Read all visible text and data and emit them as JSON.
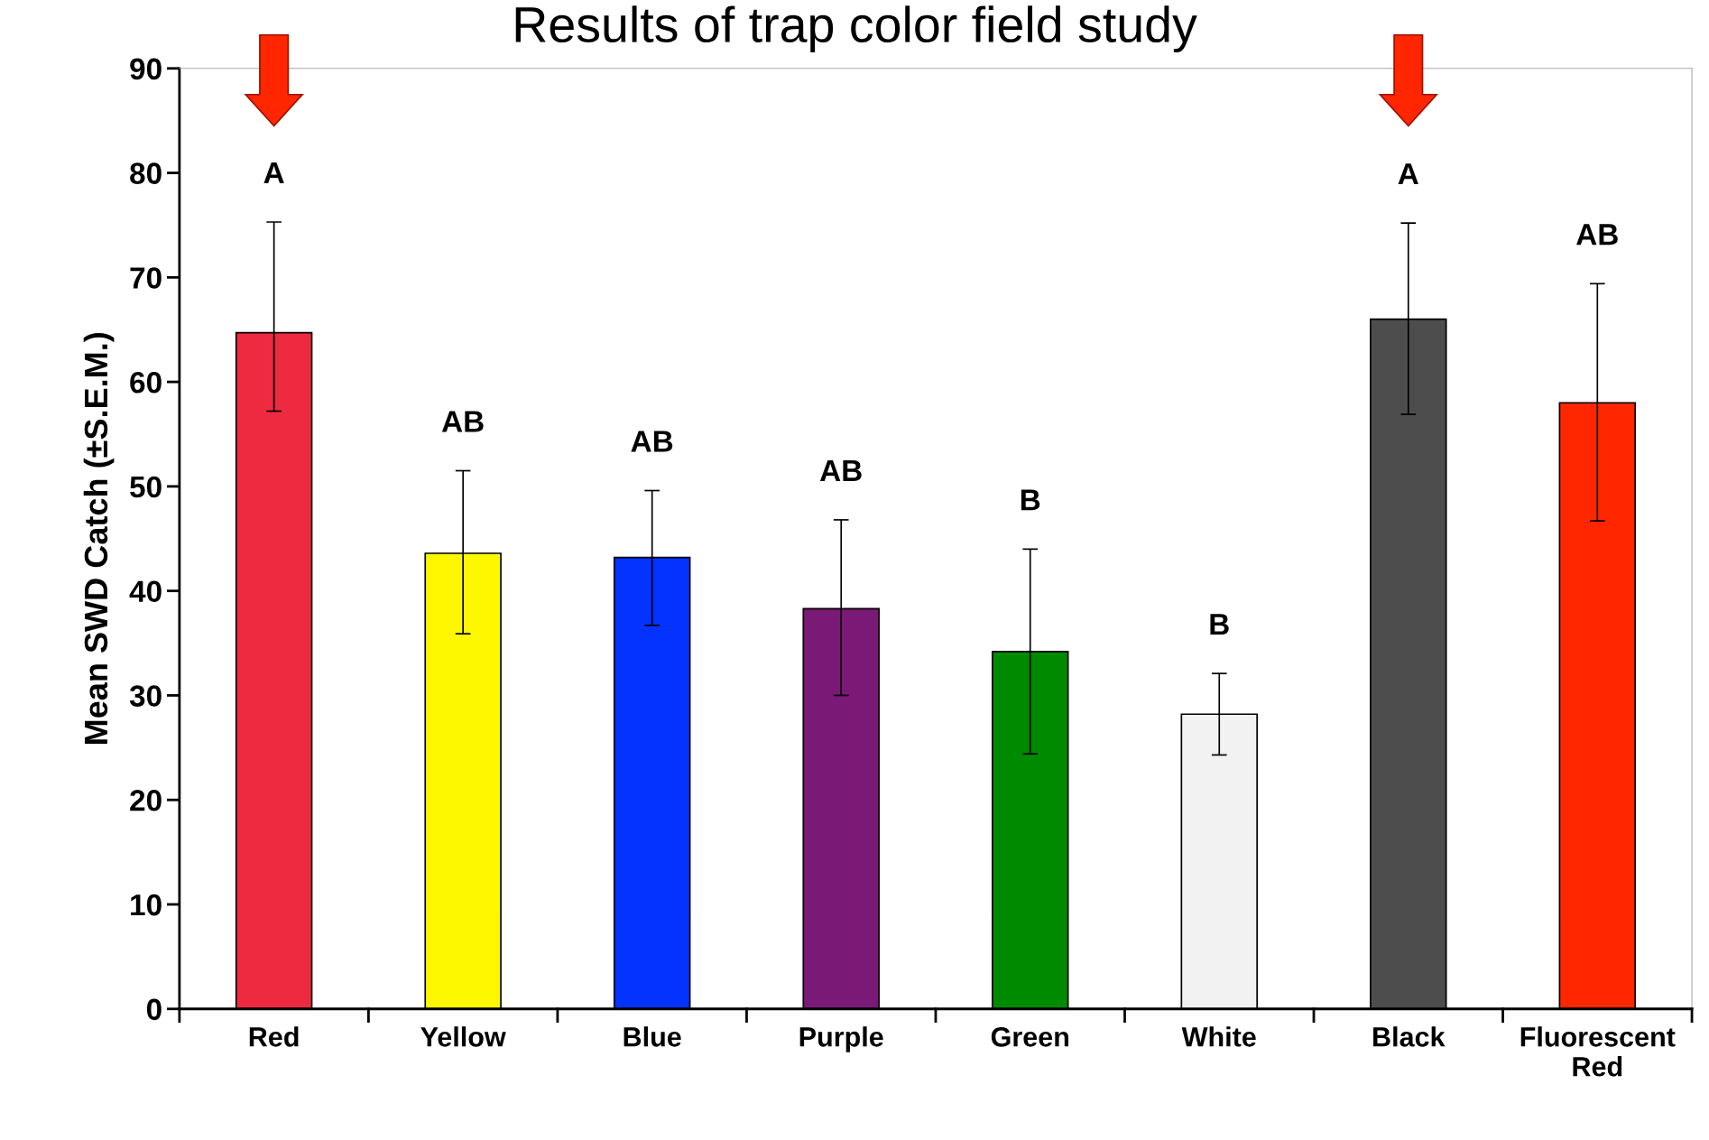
{
  "chart_data": {
    "type": "bar",
    "title": "Results of trap color field study",
    "ylabel": "Mean SWD Catch (±S.E.M.)",
    "categories": [
      "Red",
      "Yellow",
      "Blue",
      "Purple",
      "Green",
      "White",
      "Black",
      "Fluorescent\nRed"
    ],
    "values": [
      64.7,
      43.6,
      43.2,
      38.3,
      34.2,
      28.2,
      66.0,
      58.0
    ],
    "colors": [
      "#ee2a41",
      "#fdf700",
      "#0433ff",
      "#7a1a76",
      "#008a00",
      "#f2f2f2",
      "#4d4d4d",
      "#ff2600"
    ],
    "errors": [
      [
        57.2,
        75.3
      ],
      [
        35.9,
        51.5
      ],
      [
        36.7,
        49.6
      ],
      [
        30.0,
        46.8
      ],
      [
        24.4,
        44.0
      ],
      [
        24.3,
        32.1
      ],
      [
        56.9,
        75.2
      ],
      [
        46.7,
        69.4
      ]
    ],
    "ylim": [
      0,
      90
    ],
    "yticks": [
      0,
      10,
      20,
      30,
      40,
      50,
      60,
      70,
      80,
      90
    ],
    "grid": false,
    "annotations": [
      "A",
      "AB",
      "AB",
      "AB",
      "B",
      "B",
      "A",
      "AB"
    ]
  }
}
